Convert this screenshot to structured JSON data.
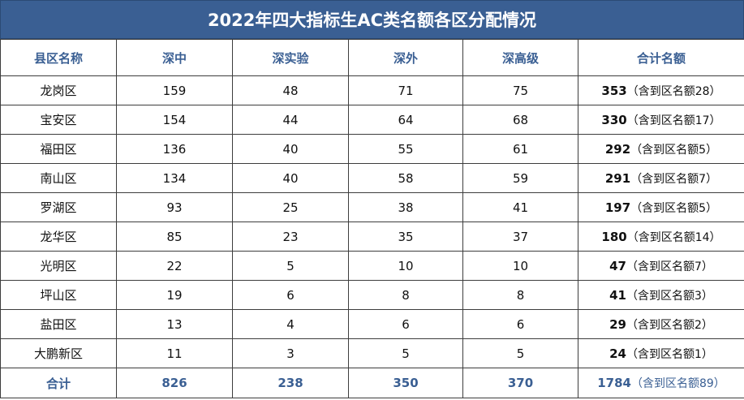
{
  "title": "2022年四大指标生AC类名额各区分配情况",
  "headers": [
    "县区名称",
    "深中",
    "深实验",
    "深外",
    "深高级",
    "合计名额"
  ],
  "rows": [
    {
      "district": "龙岗区",
      "shenzhong": "159",
      "shenshiyan": "48",
      "shenwai": "71",
      "shengaoji": "75",
      "total": "353",
      "note": "（含到区名额28）"
    },
    {
      "district": "宝安区",
      "shenzhong": "154",
      "shenshiyan": "44",
      "shenwai": "64",
      "shengaoji": "68",
      "total": "330",
      "note": "（含到区名额17）"
    },
    {
      "district": "福田区",
      "shenzhong": "136",
      "shenshiyan": "40",
      "shenwai": "55",
      "shengaoji": "61",
      "total": "292",
      "note": "（含到区名额5）"
    },
    {
      "district": "南山区",
      "shenzhong": "134",
      "shenshiyan": "40",
      "shenwai": "58",
      "shengaoji": "59",
      "total": "291",
      "note": "（含到区名额7）"
    },
    {
      "district": "罗湖区",
      "shenzhong": "93",
      "shenshiyan": "25",
      "shenwai": "38",
      "shengaoji": "41",
      "total": "197",
      "note": "（含到区名额5）"
    },
    {
      "district": "龙华区",
      "shenzhong": "85",
      "shenshiyan": "23",
      "shenwai": "35",
      "shengaoji": "37",
      "total": "180",
      "note": "（含到区名额14）"
    },
    {
      "district": "光明区",
      "shenzhong": "22",
      "shenshiyan": "5",
      "shenwai": "10",
      "shengaoji": "10",
      "total": "47",
      "note": "（含到区名额7）"
    },
    {
      "district": "坪山区",
      "shenzhong": "19",
      "shenshiyan": "6",
      "shenwai": "8",
      "shengaoji": "8",
      "total": "41",
      "note": "（含到区名额3）"
    },
    {
      "district": "盐田区",
      "shenzhong": "13",
      "shenshiyan": "4",
      "shenwai": "6",
      "shengaoji": "6",
      "total": "29",
      "note": "（含到区名额2）"
    },
    {
      "district": "大鹏新区",
      "shenzhong": "11",
      "shenshiyan": "3",
      "shenwai": "5",
      "shengaoji": "5",
      "total": "24",
      "note": "（含到区名额1）"
    }
  ],
  "footer": {
    "label": "合计",
    "shenzhong": "826",
    "shenshiyan": "238",
    "shenwai": "350",
    "shengaoji": "370",
    "total": "1784",
    "note": "（含到区名额89）"
  },
  "colors": {
    "accent": "#3a5f93",
    "title_text": "#ffffff",
    "grid": "#3d3d3d"
  }
}
